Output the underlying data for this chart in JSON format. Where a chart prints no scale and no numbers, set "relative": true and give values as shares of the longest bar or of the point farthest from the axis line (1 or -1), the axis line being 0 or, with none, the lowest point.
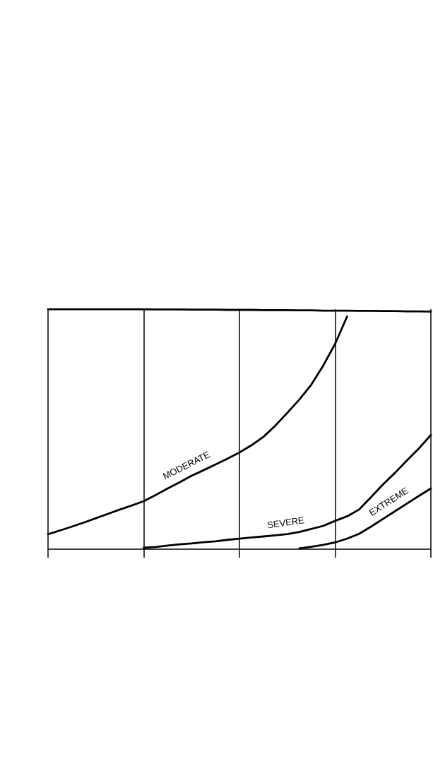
{
  "chart_data": {
    "type": "line",
    "relative": true,
    "grid": "x",
    "categories": [
      null,
      null,
      null,
      null,
      null,
      null,
      null,
      null,
      null,
      null,
      null,
      null,
      null,
      null,
      null,
      null,
      null,
      null,
      null,
      null,
      null,
      null,
      null,
      null,
      null,
      null,
      null,
      null,
      null,
      null,
      null,
      null,
      null
    ],
    "series": [
      {
        "color": "#000000",
        "values": [
          1,
          1,
          1,
          1,
          1,
          1,
          1,
          1,
          1,
          0.999,
          0.999,
          0.999,
          0.998,
          0.998,
          0.998,
          0.997,
          0.997,
          0.997,
          0.996,
          0.996,
          0.996,
          0.995,
          0.995,
          0.994,
          0.994,
          0.994,
          0.993,
          0.993,
          0.992,
          0.992,
          0.991,
          0.991,
          0.99
        ]
      },
      {
        "name": "MODERATE",
        "color": "#000000",
        "values": [
          0.062,
          0.078,
          0.094,
          0.111,
          0.129,
          0.147,
          0.165,
          0.182,
          0.2,
          0.226,
          0.253,
          0.279,
          0.306,
          0.329,
          0.353,
          0.377,
          0.403,
          0.433,
          0.468,
          0.515,
          0.568,
          0.623,
          0.685,
          0.765,
          0.856,
          0.97,
          null,
          null,
          null,
          null,
          null,
          null,
          null
        ]
      },
      {
        "name": "SEVERE",
        "color": "#000000",
        "values": [
          null,
          null,
          null,
          null,
          null,
          null,
          null,
          null,
          0.006,
          0.009,
          0.015,
          0.02,
          0.024,
          0.029,
          0.033,
          0.039,
          0.044,
          0.049,
          0.053,
          0.058,
          0.063,
          0.072,
          0.084,
          0.097,
          0.118,
          0.137,
          0.165,
          0.217,
          0.27,
          0.318,
          0.37,
          0.42,
          0.476
        ]
      },
      {
        "name": "EXTREME",
        "color": "#000000",
        "values": [
          null,
          null,
          null,
          null,
          null,
          null,
          null,
          null,
          null,
          null,
          null,
          null,
          null,
          null,
          null,
          null,
          null,
          null,
          null,
          null,
          null,
          0.003,
          0.01,
          0.018,
          0.028,
          0.044,
          0.064,
          0.094,
          0.126,
          0.158,
          0.19,
          0.222,
          0.253
        ]
      }
    ]
  }
}
